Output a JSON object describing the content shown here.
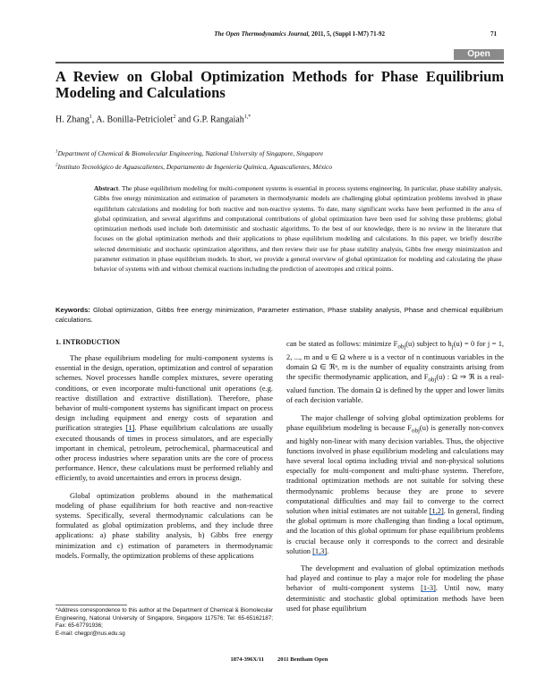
{
  "header": {
    "journal": "The Open Thermodynamics Journal,",
    "journal_rest": "2011, 5, (Suppl 1-M7) 71-92",
    "page_number": "71",
    "open_access": "Open Access"
  },
  "title": "A Review on Global Optimization Methods for Phase Equilibrium Modeling and Calculations",
  "authors": [
    {
      "name": "H. Zhang",
      "sup": "1"
    },
    {
      "name": ", A. Bonilla-Petriciolet",
      "sup": "2"
    },
    {
      "name": " and G.P. Rangaiah",
      "sup": "1,*"
    }
  ],
  "affiliations": [
    {
      "sup": "1",
      "text": "Department of Chemical & Biomolecular Engineering, National University of Singapore, Singapore"
    },
    {
      "sup": "2",
      "text": "Instituto Tecnológico de Aguascalientes, Departamento de Ingeniería Química, Aguascalientes, México"
    }
  ],
  "abstract": {
    "label": "Abstract",
    "text": ". The phase equilibrium modeling for multi-component systems is essential in process systems engineering. In particular, phase stability analysis, Gibbs free energy minimization and estimation of parameters in thermodynamic models are challenging global optimization problems involved in phase equilibrium calculations and modeling for both reactive and non-reactive systems. To date, many significant works have been performed in the area of global optimization, and several algorithms and computational contributions of global optimization have been used for solving these problems; global optimization methods used include both deterministic and stochastic algorithms. To the best of our knowledge, there is no review in the literature that focuses on the global optimization methods and their applications to phase equilibrium modeling and calculations. In this paper, we briefly describe selected deterministic and stochastic optimization algorithms, and then review their use for phase stability analysis, Gibbs free energy minimization and parameter estimation in phase equilibrium models. In short, we provide a general overview of global optimization for modeling and calculating the phase behavior of systems with and without chemical reactions including the prediction of azeotropes and critical points."
  },
  "keywords": {
    "label": "Keywords:",
    "text": " Global optimization, Gibbs free energy minimization, Parameter estimation, Phase stability analysis, Phase and chemical equilibrium calculations."
  },
  "section1": {
    "heading": "1. INTRODUCTION"
  },
  "left": {
    "p1a": "The phase equilibrium modeling for multi-component systems is essential in the design, operation, optimization and control of separation schemes. Novel processes handle complex mixtures, severe operating conditions, or even incorporate multi-functional unit operations (e.g. reactive distillation and extractive distillation). Therefore, phase behavior of multi-component systems has significant impact on process design including equipment and energy costs of separation and purification strategies ",
    "cite1": "[1]",
    "p1b": ". Phase equilibrium calculations are usually executed thousands of times in process simulators, and are especially important in chemical, petroleum, petrochemical, pharmaceutical and other process industries where separation units are the core of process performance. Hence, these calculations must be performed reliably and efficiently, to avoid uncertainties and errors in process design.",
    "p2": "Global optimization problems abound in the mathematical modeling of phase equilibrium for both reactive and non-reactive systems. Specifically, several thermodynamic calculations can be formulated as global optimization problems, and they include three applications: a) phase stability analysis, b) Gibbs free energy minimization and c) estimation of parameters in thermodynamic models. Formally, the optimization problems of these applications"
  },
  "right": {
    "p0a": "can be stated as follows: minimize F",
    "p0b": "(u) subject to h",
    "p0c": "(u) = 0 for j = 1, 2, ..., m and u ∈ Ω where u is a vector of n continuous variables in the domain Ω ∈ ℜⁿ, m is the number of equality constraints arising from the specific thermodynamic application, and F",
    "p0d": "(u) : Ω ⇒ ℜ is a real-valued function. The domain Ω is defined by the upper and lower limits of each decision variable.",
    "sub_obj": "obj",
    "sub_j": "j",
    "p1a": "The major challenge of solving global optimization problems for phase equilibrium modeling is because F",
    "p1b": "(u) is generally non-convex and highly non-linear with many decision variables. Thus, the objective functions involved in phase equilibrium modeling and calculations may have several local optima including trivial and non-physical solutions especially for multi-component and multi-phase systems. Therefore, traditional optimization methods are not suitable for solving these thermodynamic problems because they are prone to severe computational difficulties and may fail to converge to the correct solution when initial estimates are not suitable ",
    "cite12": "[1,2]",
    "p1c": ". In general, finding the global optimum is more challenging than finding a local optimum, and the location of this global optimum for phase equilibrium problems is crucial because only it corresponds to the correct and desirable solution ",
    "cite13": "[1,3]",
    "p2a": "The development and evaluation of global optimization methods had played and continue to play a major role for modeling the phase behavior of multi-component systems ",
    "cite13b": "[1-3]",
    "p2b": ". Until now, many deterministic and stochastic global optimization methods have been used for phase equilibrium"
  },
  "footnote": "*Address correspondence to this author at the Department of Chemical & Biomolecular Engineering, National University of Singapore, Singapore 117576; Tel: 65-65162187; Fax: 65-67791936;",
  "footnote_email": "E-mail: chegpr@nus.edu.sg",
  "footer": {
    "issn": "1874-396X/11",
    "publisher": "2011 Bentham Open"
  }
}
